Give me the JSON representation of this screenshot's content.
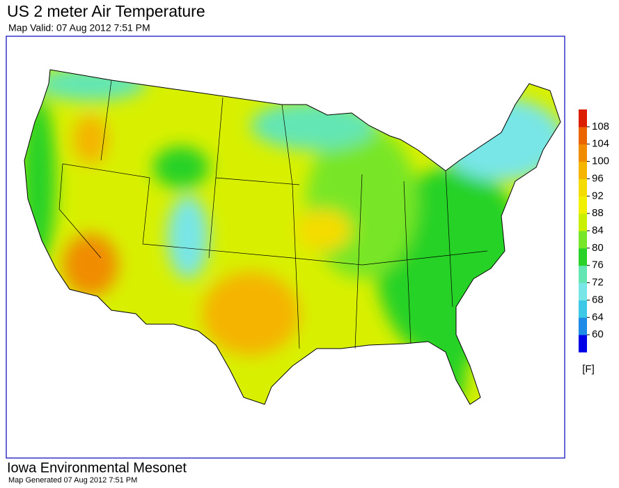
{
  "header": {
    "title": "US 2 meter Air Temperature",
    "subtitle": "Map Valid: 07 Aug 2012 7:51 PM"
  },
  "legend": {
    "ticks": [
      60,
      64,
      68,
      72,
      76,
      80,
      84,
      88,
      92,
      96,
      100,
      104,
      108
    ],
    "colors": [
      "#0000e6",
      "#1e8ce6",
      "#3cc8e6",
      "#78e6e6",
      "#64e6b4",
      "#28d228",
      "#78e628",
      "#c8f000",
      "#f0f000",
      "#f5dc00",
      "#f5b400",
      "#f08c00",
      "#eb6400",
      "#dc1e00"
    ],
    "unit": "[F]"
  },
  "footer": {
    "title": "Iowa Environmental Mesonet",
    "subtitle": "Map Generated 07 Aug 2012 7:51 PM"
  }
}
